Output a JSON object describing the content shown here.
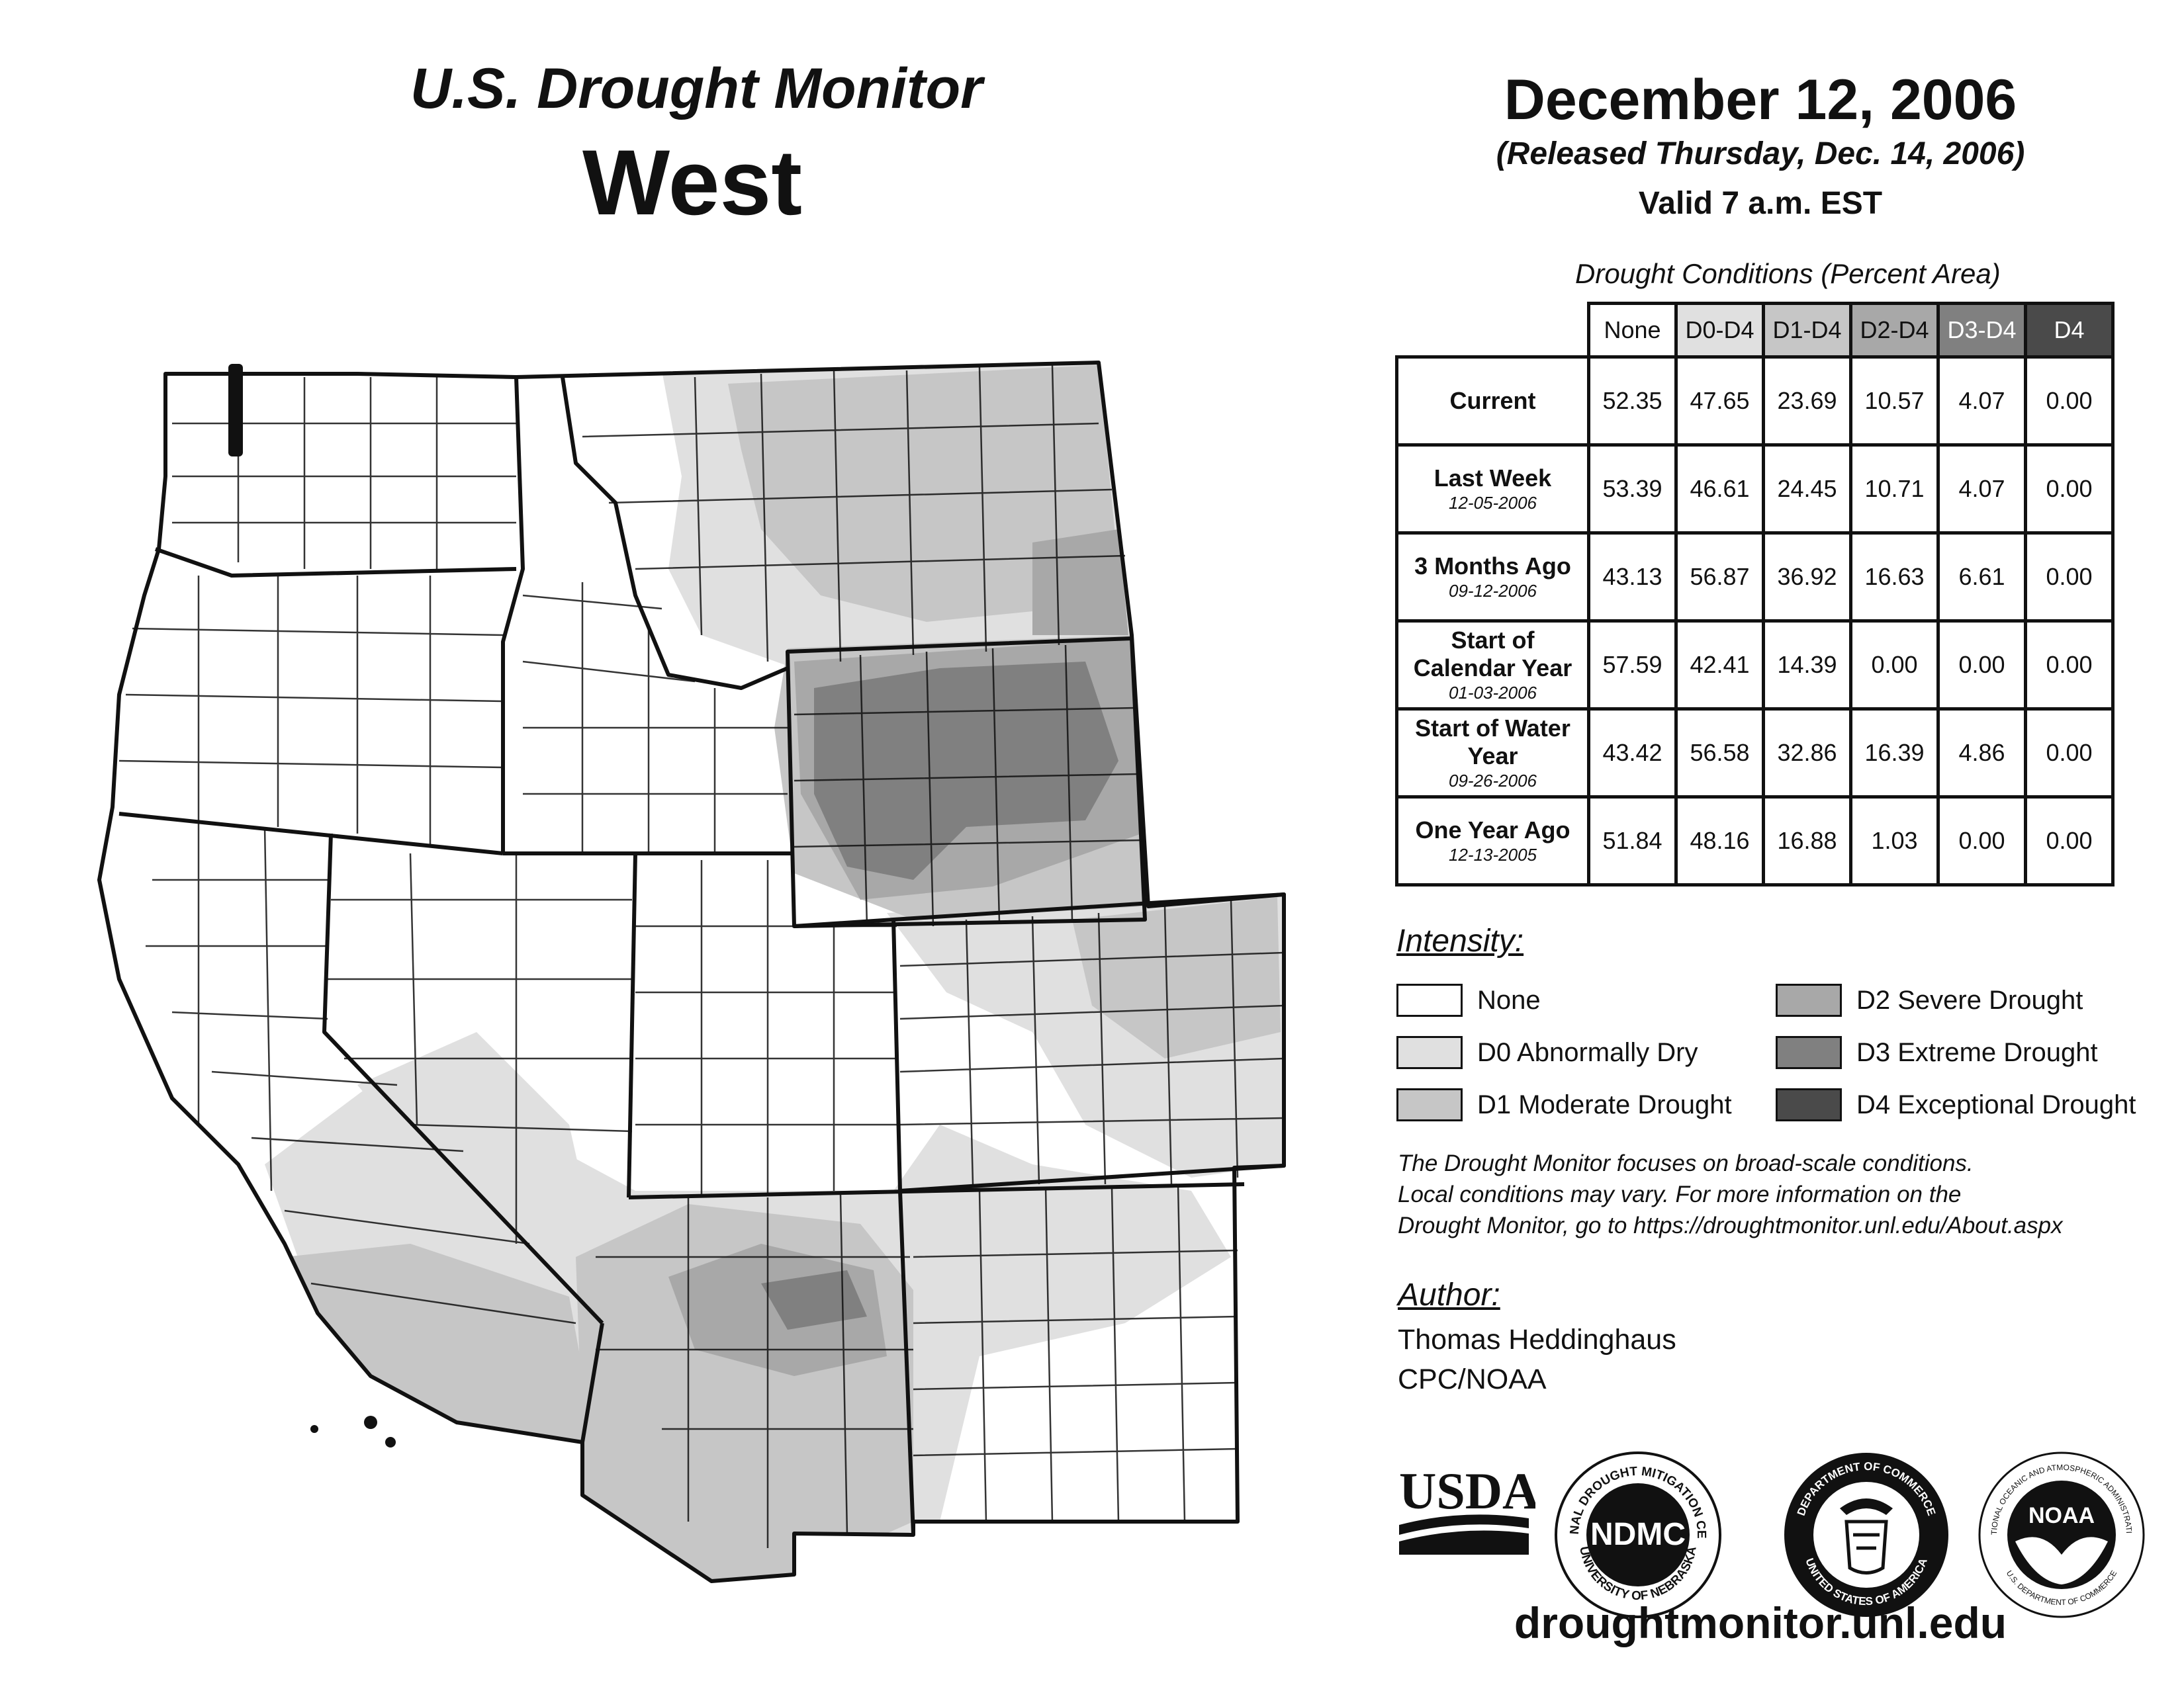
{
  "header": {
    "product": "U.S. Drought Monitor",
    "region": "West",
    "date": "December 12, 2006",
    "released": "(Released Thursday, Dec. 14, 2006)",
    "valid": "Valid 7 a.m. EST"
  },
  "table": {
    "caption": "Drought Conditions (Percent Area)",
    "columns": [
      "None",
      "D0-D4",
      "D1-D4",
      "D2-D4",
      "D3-D4",
      "D4"
    ],
    "rows": [
      {
        "label": "Current",
        "sub": "",
        "values": [
          "52.35",
          "47.65",
          "23.69",
          "10.57",
          "4.07",
          "0.00"
        ]
      },
      {
        "label": "Last Week",
        "sub": "12-05-2006",
        "values": [
          "53.39",
          "46.61",
          "24.45",
          "10.71",
          "4.07",
          "0.00"
        ]
      },
      {
        "label": "3 Months Ago",
        "sub": "09-12-2006",
        "values": [
          "43.13",
          "56.87",
          "36.92",
          "16.63",
          "6.61",
          "0.00"
        ]
      },
      {
        "label": "Start of Calendar Year",
        "sub": "01-03-2006",
        "values": [
          "57.59",
          "42.41",
          "14.39",
          "0.00",
          "0.00",
          "0.00"
        ]
      },
      {
        "label": "Start of Water Year",
        "sub": "09-26-2006",
        "values": [
          "43.42",
          "56.58",
          "32.86",
          "16.39",
          "4.86",
          "0.00"
        ]
      },
      {
        "label": "One Year Ago",
        "sub": "12-13-2005",
        "values": [
          "51.84",
          "48.16",
          "16.88",
          "1.03",
          "0.00",
          "0.00"
        ]
      }
    ]
  },
  "legend": {
    "title": "Intensity:",
    "items": [
      {
        "label": "None",
        "color": "#ffffff"
      },
      {
        "label": "D0 Abnormally Dry",
        "color": "#e0e0e0"
      },
      {
        "label": "D1 Moderate Drought",
        "color": "#c6c6c6"
      },
      {
        "label": "D2 Severe Drought",
        "color": "#a8a8a8"
      },
      {
        "label": "D3 Extreme Drought",
        "color": "#808080"
      },
      {
        "label": "D4 Exceptional Drought",
        "color": "#4a4a4a"
      }
    ]
  },
  "note": [
    "The Drought Monitor focuses on broad-scale conditions.",
    "Local conditions may vary. For more information on the",
    "Drought Monitor, go to https://droughtmonitor.unl.edu/About.aspx"
  ],
  "author": {
    "title": "Author:",
    "name": "Thomas Heddinghaus",
    "org": "CPC/NOAA"
  },
  "logos": {
    "usda": "USDA",
    "ndmc": "NDMC",
    "ndmc_ring_top": "NATIONAL DROUGHT MITIGATION CENTER",
    "ndmc_ring_bottom": "UNIVERSITY OF NEBRASKA",
    "doc_ring_top": "DEPARTMENT OF COMMERCE",
    "doc_ring_bottom": "UNITED STATES OF AMERICA",
    "noaa": "NOAA",
    "noaa_ring_top": "NATIONAL OCEANIC AND ATMOSPHERIC ADMINISTRATION",
    "noaa_ring_bottom": "U.S. DEPARTMENT OF COMMERCE"
  },
  "url": "droughtmonitor.unl.edu",
  "map": {
    "states": [
      "WA",
      "OR",
      "CA",
      "NV",
      "ID",
      "MT",
      "WY",
      "UT",
      "CO",
      "AZ",
      "NM"
    ],
    "colors": {
      "none": "#ffffff",
      "d0": "#e0e0e0",
      "d1": "#c6c6c6",
      "d2": "#a8a8a8",
      "d3": "#808080",
      "outline": "#111111"
    }
  }
}
